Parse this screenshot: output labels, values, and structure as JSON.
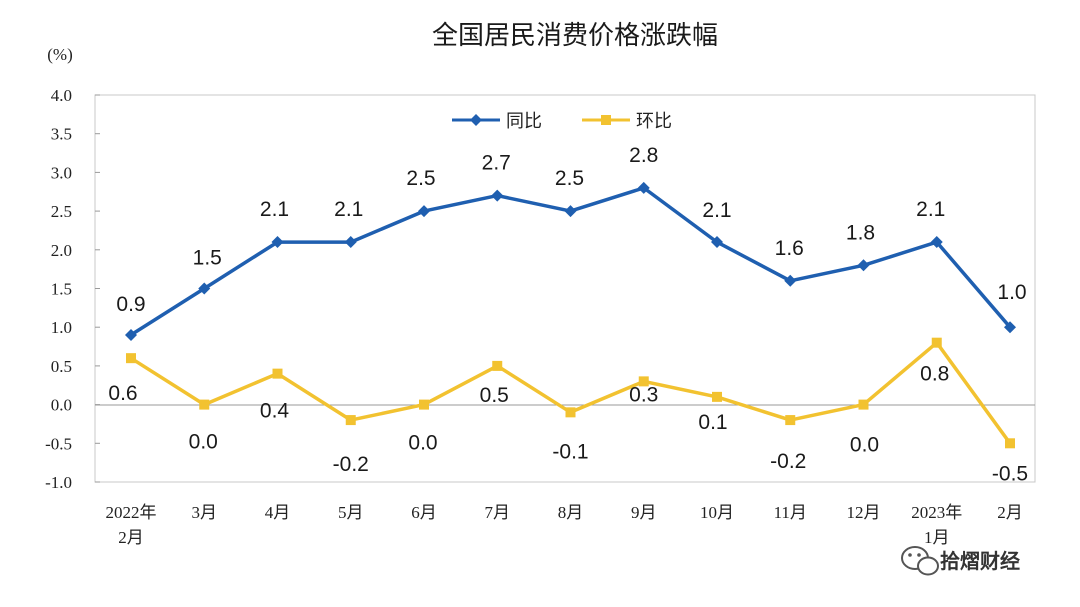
{
  "chart_data": {
    "type": "line",
    "title": "全国居民消费价格涨跌幅",
    "unit": "(%)",
    "ylim": [
      -1.0,
      4.0
    ],
    "yticks": [
      "4.0",
      "3.5",
      "3.0",
      "2.5",
      "2.0",
      "1.5",
      "1.0",
      "0.5",
      "0.0",
      "-0.5",
      "-1.0"
    ],
    "ytick_values": [
      4.0,
      3.5,
      3.0,
      2.5,
      2.0,
      1.5,
      1.0,
      0.5,
      0.0,
      -0.5,
      -1.0
    ],
    "categories": [
      [
        "2022年",
        "2月"
      ],
      [
        "3月"
      ],
      [
        "4月"
      ],
      [
        "5月"
      ],
      [
        "6月"
      ],
      [
        "7月"
      ],
      [
        "8月"
      ],
      [
        "9月"
      ],
      [
        "10月"
      ],
      [
        "11月"
      ],
      [
        "12月"
      ],
      [
        "2023年",
        "1月"
      ],
      [
        "2月"
      ]
    ],
    "legend_position": "top-center",
    "series": [
      {
        "name": "同比",
        "color": "#1f5fb0",
        "marker": "diamond",
        "values": [
          0.9,
          1.5,
          2.1,
          2.1,
          2.5,
          2.7,
          2.5,
          2.8,
          2.1,
          1.6,
          1.8,
          2.1,
          1.0
        ],
        "labels": [
          "0.9",
          "1.5",
          "2.1",
          "2.1",
          "2.5",
          "2.7",
          "2.5",
          "2.8",
          "2.1",
          "1.6",
          "1.8",
          "2.1",
          "1.0"
        ],
        "label_position": "above"
      },
      {
        "name": "环比",
        "color": "#f2c230",
        "marker": "square",
        "values": [
          0.6,
          0.0,
          0.4,
          -0.2,
          0.0,
          0.5,
          -0.1,
          0.3,
          0.1,
          -0.2,
          0.0,
          0.8,
          -0.5
        ],
        "labels": [
          "0.6",
          "0.0",
          "0.4",
          "-0.2",
          "0.0",
          "0.5",
          "-0.1",
          "0.3",
          "0.1",
          "-0.2",
          "0.0",
          "0.8",
          "-0.5"
        ],
        "label_position": "below"
      }
    ]
  },
  "watermark": {
    "text": "拾熠财经",
    "icon": "wechat-icon"
  }
}
